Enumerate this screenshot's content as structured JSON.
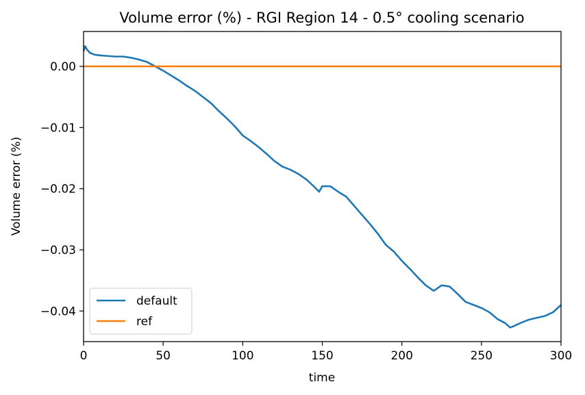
{
  "chart_data": {
    "type": "line",
    "title": "Volume error (%) - RGI Region 14 - 0.5° cooling scenario",
    "xlabel": "time",
    "ylabel": "Volume error (%)",
    "xlim": [
      0,
      300
    ],
    "ylim": [
      -0.045,
      0.0057
    ],
    "xticks": [
      0,
      50,
      100,
      150,
      200,
      250,
      300
    ],
    "xtick_labels": [
      "0",
      "50",
      "100",
      "150",
      "200",
      "250",
      "300"
    ],
    "yticks": [
      0.0,
      -0.01,
      -0.02,
      -0.03,
      -0.04
    ],
    "ytick_labels": [
      "0.00",
      "−0.01",
      "−0.02",
      "−0.03",
      "−0.04"
    ],
    "grid": false,
    "legend_position": "lower-left",
    "series": [
      {
        "name": "default",
        "color": "#1f77b4",
        "x": [
          0,
          1,
          2,
          4,
          7,
          10,
          15,
          20,
          25,
          30,
          35,
          40,
          45,
          50,
          55,
          60,
          65,
          70,
          75,
          80,
          85,
          90,
          95,
          100,
          105,
          110,
          115,
          120,
          125,
          130,
          135,
          140,
          145,
          148,
          150,
          155,
          160,
          165,
          170,
          175,
          180,
          185,
          190,
          195,
          200,
          205,
          210,
          215,
          220,
          225,
          230,
          235,
          240,
          245,
          250,
          255,
          260,
          265,
          268,
          270,
          275,
          280,
          285,
          290,
          295,
          300
        ],
        "y": [
          0.0025,
          0.0033,
          0.0028,
          0.0022,
          0.0019,
          0.0018,
          0.0017,
          0.0016,
          0.0016,
          0.0014,
          0.0011,
          0.0007,
          0.0,
          -0.0007,
          -0.0015,
          -0.0023,
          -0.0032,
          -0.004,
          -0.005,
          -0.006,
          -0.0073,
          -0.0085,
          -0.0098,
          -0.0113,
          -0.0122,
          -0.0132,
          -0.0143,
          -0.0155,
          -0.0164,
          -0.0169,
          -0.0176,
          -0.0185,
          -0.0197,
          -0.0205,
          -0.0196,
          -0.0196,
          -0.0205,
          -0.0213,
          -0.0228,
          -0.0243,
          -0.0258,
          -0.0274,
          -0.0292,
          -0.0303,
          -0.0318,
          -0.0331,
          -0.0345,
          -0.0358,
          -0.0367,
          -0.0358,
          -0.036,
          -0.0372,
          -0.0385,
          -0.039,
          -0.0395,
          -0.0402,
          -0.0413,
          -0.042,
          -0.0427,
          -0.0425,
          -0.0419,
          -0.0414,
          -0.0411,
          -0.0408,
          -0.0402,
          -0.039
        ]
      },
      {
        "name": "ref",
        "color": "#ff7f0e",
        "x": [
          0,
          300
        ],
        "y": [
          0.0,
          0.0
        ]
      }
    ]
  }
}
